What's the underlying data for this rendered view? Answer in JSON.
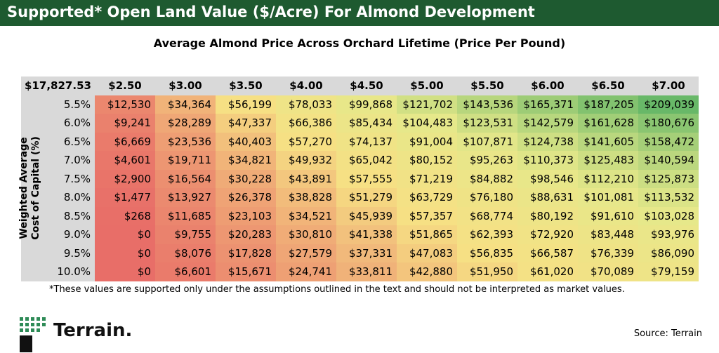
{
  "header": {
    "title": "Supported* Open Land Value ($/Acre) For Almond Development",
    "subtitle": "Average Almond Price Across Orchard Lifetime (Price Per Pound)"
  },
  "table": {
    "corner": "$17,827.53",
    "columns": [
      "$2.50",
      "$3.00",
      "$3.50",
      "$4.00",
      "$4.50",
      "$5.00",
      "$5.50",
      "$6.00",
      "$6.50",
      "$7.00"
    ],
    "row_title": [
      "Weighted Average",
      "Cost of Capital (%)"
    ],
    "rows": [
      {
        "label": "5.5%",
        "cells": [
          "$12,530",
          "$34,364",
          "$56,199",
          "$78,033",
          "$99,868",
          "$121,702",
          "$143,536",
          "$165,371",
          "$187,205",
          "$209,039"
        ]
      },
      {
        "label": "6.0%",
        "cells": [
          "$9,241",
          "$28,289",
          "$47,337",
          "$66,386",
          "$85,434",
          "$104,483",
          "$123,531",
          "$142,579",
          "$161,628",
          "$180,676"
        ]
      },
      {
        "label": "6.5%",
        "cells": [
          "$6,669",
          "$23,536",
          "$40,403",
          "$57,270",
          "$74,137",
          "$91,004",
          "$107,871",
          "$124,738",
          "$141,605",
          "$158,472"
        ]
      },
      {
        "label": "7.0%",
        "cells": [
          "$4,601",
          "$19,711",
          "$34,821",
          "$49,932",
          "$65,042",
          "$80,152",
          "$95,263",
          "$110,373",
          "$125,483",
          "$140,594"
        ]
      },
      {
        "label": "7.5%",
        "cells": [
          "$2,900",
          "$16,564",
          "$30,228",
          "$43,891",
          "$57,555",
          "$71,219",
          "$84,882",
          "$98,546",
          "$112,210",
          "$125,873"
        ]
      },
      {
        "label": "8.0%",
        "cells": [
          "$1,477",
          "$13,927",
          "$26,378",
          "$38,828",
          "$51,279",
          "$63,729",
          "$76,180",
          "$88,631",
          "$101,081",
          "$113,532"
        ]
      },
      {
        "label": "8.5%",
        "cells": [
          "$268",
          "$11,685",
          "$23,103",
          "$34,521",
          "$45,939",
          "$57,357",
          "$68,774",
          "$80,192",
          "$91,610",
          "$103,028"
        ]
      },
      {
        "label": "9.0%",
        "cells": [
          "$0",
          "$9,755",
          "$20,283",
          "$30,810",
          "$41,338",
          "$51,865",
          "$62,393",
          "$72,920",
          "$83,448",
          "$93,976"
        ]
      },
      {
        "label": "9.5%",
        "cells": [
          "$0",
          "$8,076",
          "$17,828",
          "$27,579",
          "$37,331",
          "$47,083",
          "$56,835",
          "$66,587",
          "$76,339",
          "$86,090"
        ]
      },
      {
        "label": "10.0%",
        "cells": [
          "$0",
          "$6,601",
          "$15,671",
          "$24,741",
          "$33,811",
          "$42,880",
          "$51,950",
          "$61,020",
          "$70,089",
          "$79,159"
        ]
      }
    ]
  },
  "footnote": "*These values are  supported only under the assumptions outlined in the text and should not be interpreted as market values.",
  "logo": "Terrain.",
  "source": "Source: Terrain"
}
